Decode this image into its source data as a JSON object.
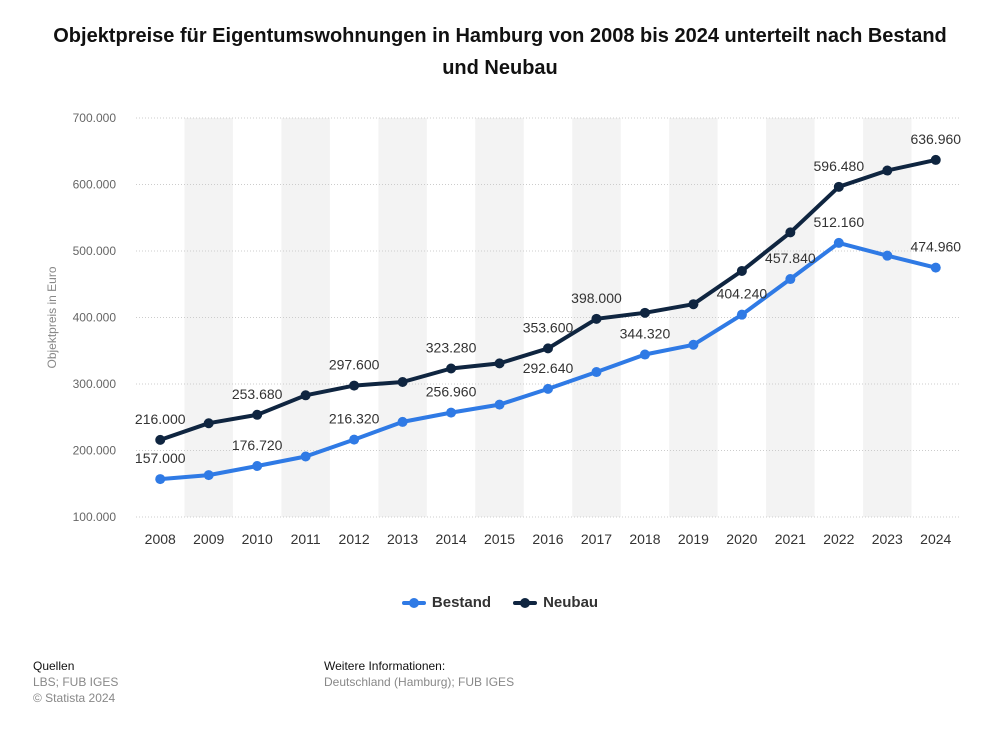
{
  "title": "Objektpreise für Eigentumswohnungen in Hamburg von 2008 bis 2024 unterteilt nach Bestand und Neubau",
  "chart_data": {
    "type": "line",
    "title": "Objektpreise für Eigentumswohnungen in Hamburg von 2008 bis 2024 unterteilt nach Bestand und Neubau",
    "xlabel": "",
    "ylabel": "Objektpreis in Euro",
    "ylim": [
      100000,
      700000
    ],
    "yticks": [
      100000,
      200000,
      300000,
      400000,
      500000,
      600000,
      700000
    ],
    "ytick_labels": [
      "100.000",
      "200.000",
      "300.000",
      "400.000",
      "500.000",
      "600.000",
      "700.000"
    ],
    "categories": [
      "2008",
      "2009",
      "2010",
      "2011",
      "2012",
      "2013",
      "2014",
      "2015",
      "2016",
      "2017",
      "2018",
      "2019",
      "2020",
      "2021",
      "2022",
      "2023",
      "2024"
    ],
    "grid": true,
    "legend_position": "bottom",
    "series": [
      {
        "name": "Bestand",
        "color": "#2f7ae5",
        "values": [
          157000,
          163000,
          176720,
          191000,
          216320,
          243000,
          256960,
          269000,
          292640,
          318000,
          344320,
          359000,
          404240,
          457840,
          512160,
          493000,
          474960
        ],
        "labels": [
          "157.000",
          "",
          "176.720",
          "",
          "216.320",
          "",
          "256.960",
          "",
          "292.640",
          "",
          "344.320",
          "",
          "404.240",
          "457.840",
          "512.160",
          "",
          "474.960"
        ]
      },
      {
        "name": "Neubau",
        "color": "#0f2540",
        "values": [
          216000,
          241000,
          253680,
          283000,
          297600,
          303000,
          323280,
          331000,
          353600,
          398000,
          407000,
          420000,
          470000,
          528000,
          596480,
          621000,
          636960
        ],
        "labels": [
          "216.000",
          "",
          "253.680",
          "",
          "297.600",
          "",
          "323.280",
          "",
          "353.600",
          "398.000",
          "",
          "",
          "",
          "",
          "596.480",
          "",
          "636.960"
        ]
      }
    ]
  },
  "footer": {
    "sources_heading": "Quellen",
    "sources_text": "LBS; FUB IGES",
    "copyright": "© Statista 2024",
    "info_heading": "Weitere Informationen:",
    "info_text": "Deutschland (Hamburg); FUB IGES"
  }
}
